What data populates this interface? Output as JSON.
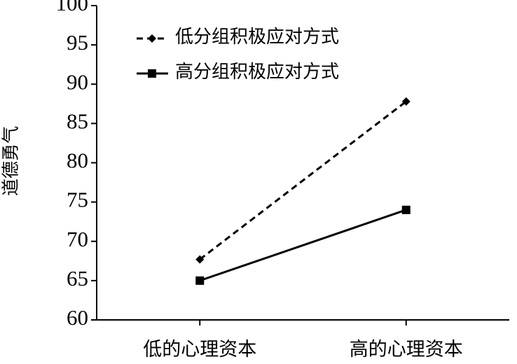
{
  "chart_data": {
    "type": "line",
    "y_label": "道德勇气",
    "categories": [
      "低的心理资本",
      "高的心理资本"
    ],
    "series": [
      {
        "name": "低分组积极应对方式",
        "color": "#000000",
        "line_style": "dashed",
        "marker": "diamond",
        "values": [
          67.7,
          87.8
        ]
      },
      {
        "name": "高分组积极应对方式",
        "color": "#000000",
        "line_style": "solid",
        "marker": "square",
        "values": [
          65,
          74
        ]
      }
    ],
    "ylim": [
      60,
      100
    ],
    "yticks": [
      60,
      65,
      70,
      75,
      80,
      85,
      90,
      95,
      100
    ],
    "grid": false,
    "legend": "upper left"
  }
}
